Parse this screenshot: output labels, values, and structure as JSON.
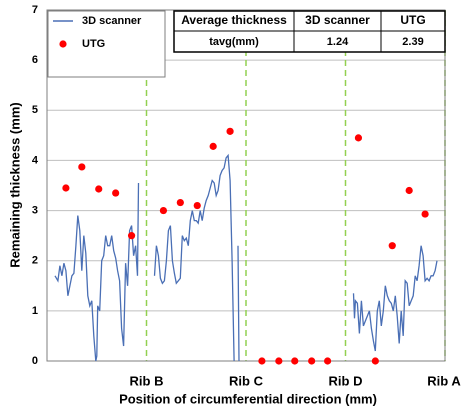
{
  "chart_data": {
    "type": "line_scatter",
    "xlabel": "Position of circumferential direction (mm)",
    "ylabel": "Remaining thickness (mm)",
    "xlim": [
      0,
      400
    ],
    "xticks": [
      {
        "value": 100,
        "label": "Rib B"
      },
      {
        "value": 200,
        "label": "Rib C"
      },
      {
        "value": 300,
        "label": "Rib D"
      },
      {
        "value": 400,
        "label": "Rib A"
      }
    ],
    "ylim": [
      0,
      7
    ],
    "yticks": [
      0,
      1,
      2,
      3,
      4,
      5,
      6,
      7
    ],
    "grid": true,
    "legend": "upper left",
    "series": [
      {
        "name": "3D scanner",
        "kind": "line",
        "color": "#4a6fb5",
        "x": [
          8,
          11,
          13,
          15,
          17,
          19,
          21,
          23,
          25,
          27,
          29,
          31,
          33,
          35,
          37,
          39,
          41,
          43,
          45,
          47,
          49,
          50,
          51,
          53,
          55,
          57,
          59,
          61,
          63,
          65,
          67,
          69,
          71,
          73,
          75,
          77,
          79,
          81,
          83,
          85,
          87,
          89,
          91,
          92,
          100,
          108,
          110,
          112,
          114,
          116,
          118,
          120,
          122,
          124,
          126,
          128,
          130,
          132,
          134,
          136,
          138,
          140,
          142,
          144,
          146,
          148,
          150,
          152,
          154,
          156,
          158,
          160,
          162,
          164,
          166,
          168,
          170,
          172,
          174,
          176,
          178,
          180,
          182,
          184,
          186,
          188,
          190,
          192,
          193,
          300,
          308,
          309,
          310,
          312,
          314,
          316,
          318,
          320,
          322,
          324,
          326,
          328,
          330,
          332,
          334,
          336,
          338,
          340,
          342,
          344,
          346,
          348,
          350,
          352,
          354,
          356,
          358,
          360,
          362,
          364,
          366,
          368,
          370,
          372,
          374,
          376,
          378,
          380,
          382,
          384,
          386,
          388,
          390,
          392
        ],
        "values": [
          1.7,
          1.6,
          1.9,
          1.7,
          1.95,
          1.8,
          1.3,
          1.5,
          1.7,
          1.75,
          2.3,
          2.9,
          2.6,
          1.8,
          2.5,
          2.15,
          1.3,
          1.1,
          1.2,
          0.5,
          0,
          0.1,
          1.1,
          1.0,
          2.0,
          2.1,
          2.5,
          2.3,
          2.3,
          2.5,
          2.2,
          2.05,
          1.8,
          1.6,
          0.65,
          0.3,
          1.95,
          1.5,
          2.6,
          2.7,
          2.1,
          2.3,
          1.7,
          3.55,
          null,
          1.7,
          2.3,
          2.1,
          1.65,
          1.55,
          1.6,
          2.0,
          2.6,
          2.7,
          2.0,
          1.75,
          1.55,
          1.6,
          1.65,
          2.5,
          2.4,
          2.45,
          2.3,
          2.8,
          3.0,
          2.8,
          2.8,
          2.75,
          3.0,
          2.8,
          3.05,
          3.2,
          3.3,
          3.45,
          3.6,
          3.55,
          3.3,
          3.4,
          3.7,
          3.8,
          3.85,
          4.05,
          4.1,
          3.6,
          2.0,
          0,
          null,
          2.3,
          0,
          null,
          1.35,
          0.85,
          1.2,
          1.15,
          0.55,
          1.2,
          0.7,
          0.8,
          0.9,
          1.0,
          0.65,
          0.4,
          0.2,
          1.0,
          1.2,
          0.7,
          1.0,
          1.5,
          1.3,
          1.2,
          1.15,
          1.0,
          1.3,
          0.9,
          0.35,
          1.0,
          0.5,
          1.6,
          1.55,
          1.1,
          1.2,
          1.3,
          1.7,
          1.6,
          1.9,
          2.3,
          2.1,
          1.6,
          1.65,
          1.6,
          1.7,
          1.7,
          1.8,
          2.0
        ]
      },
      {
        "name": "UTG",
        "kind": "scatter",
        "color": "#ff0000",
        "x": [
          19,
          35,
          52,
          69,
          85,
          117,
          134,
          151,
          167,
          184,
          216,
          233,
          249,
          266,
          282,
          313,
          330,
          347,
          364,
          380
        ],
        "values": [
          3.45,
          3.87,
          3.43,
          3.35,
          2.5,
          3.0,
          3.16,
          3.1,
          4.28,
          4.58,
          0,
          0,
          0,
          0,
          0,
          4.45,
          0,
          2.3,
          3.4,
          2.93
        ]
      }
    ],
    "summary_table": {
      "header": [
        "Average thickness",
        "3D scanner",
        "UTG"
      ],
      "rows": [
        [
          "tavg(mm)",
          "1.24",
          "2.39"
        ]
      ]
    }
  }
}
